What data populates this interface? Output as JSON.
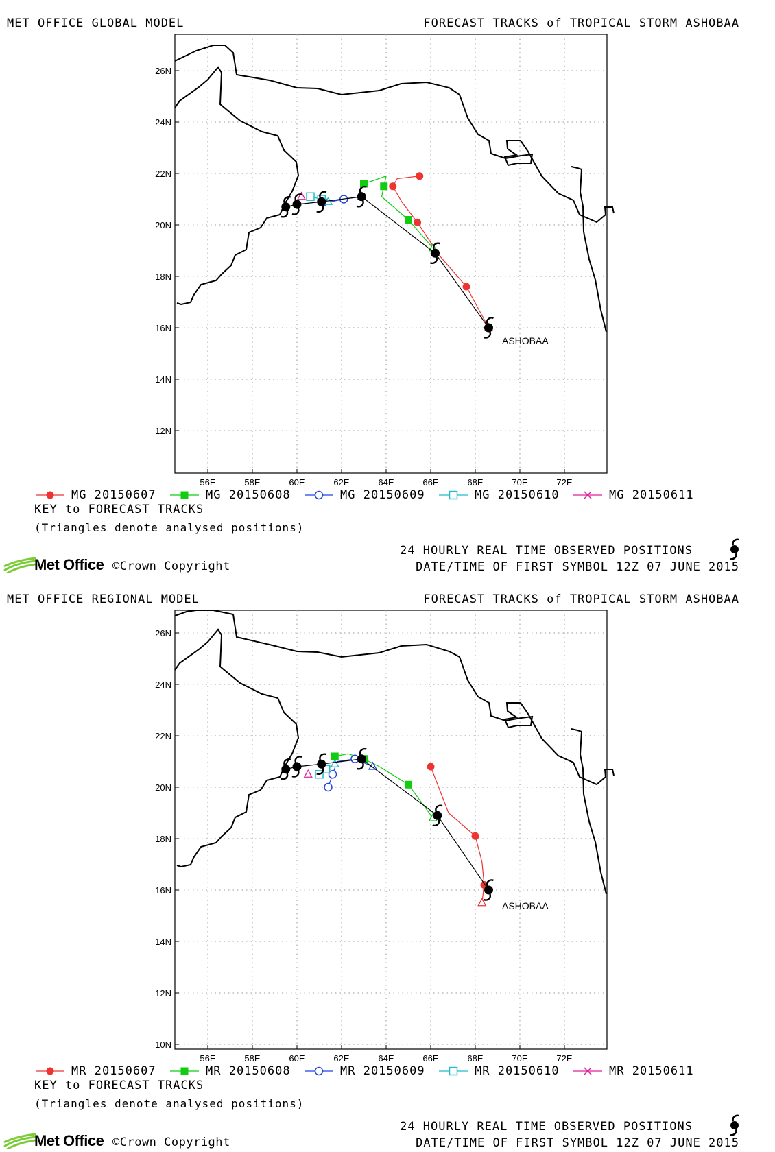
{
  "colors": {
    "mg0607": "#ee3333",
    "mg0608": "#11cc11",
    "mg0609": "#2244dd",
    "mg0610": "#22bbcc",
    "mg0611": "#dd2299",
    "observed": "#000000",
    "coast": "#000000",
    "grid": "#999999"
  },
  "panels": [
    {
      "id": "global",
      "header_left": "MET OFFICE GLOBAL MODEL",
      "header_right": "FORECAST TRACKS of TROPICAL STORM ASHOBAA",
      "map": {
        "lon_labels": [
          "56E",
          "58E",
          "60E",
          "62E",
          "64E",
          "66E",
          "68E",
          "70E",
          "72E"
        ],
        "lat_labels": [
          "12N",
          "14N",
          "16N",
          "18N",
          "20N",
          "22N",
          "24N",
          "26N"
        ],
        "storm_label": "ASHOBAA",
        "observed": [
          [
            68.6,
            16.0
          ],
          [
            66.2,
            18.9
          ],
          [
            62.9,
            21.1
          ],
          [
            61.1,
            20.9
          ],
          [
            60.0,
            20.8
          ],
          [
            59.5,
            20.7
          ]
        ],
        "tracks": [
          {
            "key": "mg0607",
            "marker": "circle-filled",
            "points": [
              [
                68.6,
                16.0
              ],
              [
                67.6,
                17.6
              ],
              [
                66.4,
                18.8
              ],
              [
                65.4,
                20.1
              ],
              [
                64.7,
                20.9
              ],
              [
                64.3,
                21.5
              ],
              [
                64.5,
                21.8
              ],
              [
                65.5,
                21.9
              ]
            ]
          },
          {
            "key": "mg0608",
            "marker": "square-filled",
            "points": [
              [
                66.1,
                19.1
              ],
              [
                65.0,
                20.2
              ],
              [
                63.8,
                21.1
              ],
              [
                63.9,
                21.5
              ],
              [
                64.0,
                21.9
              ],
              [
                63.0,
                21.6
              ]
            ]
          },
          {
            "key": "mg0609",
            "marker": "circle-open",
            "points": [
              [
                62.9,
                21.1
              ],
              [
                62.1,
                21.0
              ],
              [
                61.5,
                20.9
              ],
              [
                61.2,
                20.9
              ]
            ]
          },
          {
            "key": "mg0610",
            "marker": "square-open",
            "points": [
              [
                61.4,
                20.9
              ],
              [
                61.1,
                21.0
              ],
              [
                60.6,
                21.1
              ]
            ]
          },
          {
            "key": "mg0611",
            "marker": "triangle-open",
            "points": [
              [
                60.2,
                21.1
              ]
            ]
          }
        ]
      },
      "legend": [
        {
          "key": "mg0607",
          "marker": "circle-filled",
          "label": "MG 20150607"
        },
        {
          "key": "mg0608",
          "marker": "square-filled",
          "label": "MG 20150608"
        },
        {
          "key": "mg0609",
          "marker": "circle-open",
          "label": "MG 20150609"
        },
        {
          "key": "mg0610",
          "marker": "square-open",
          "label": "MG 20150610"
        },
        {
          "key": "mg0611",
          "marker": "cross",
          "label": "MG 20150611"
        }
      ],
      "key_title": "KEY to FORECAST TRACKS",
      "key_note": "(Triangles denote analysed positions)",
      "observed_label": "24 HOURLY REAL TIME OBSERVED POSITIONS",
      "date_label": "DATE/TIME OF FIRST SYMBOL 12Z 07 JUNE 2015",
      "logo_text": "Met Office",
      "copyright": "©Crown Copyright"
    },
    {
      "id": "regional",
      "header_left": "MET OFFICE REGIONAL MODEL",
      "header_right": "FORECAST TRACKS of TROPICAL STORM ASHOBAA",
      "map": {
        "lon_labels": [
          "56E",
          "58E",
          "60E",
          "62E",
          "64E",
          "66E",
          "68E",
          "70E",
          "72E"
        ],
        "lat_labels": [
          "10N",
          "12N",
          "14N",
          "16N",
          "18N",
          "20N",
          "22N",
          "24N",
          "26N"
        ],
        "storm_label": "ASHOBAA",
        "observed": [
          [
            68.6,
            16.0
          ],
          [
            66.3,
            18.9
          ],
          [
            62.9,
            21.1
          ],
          [
            61.1,
            20.9
          ],
          [
            60.0,
            20.8
          ],
          [
            59.5,
            20.7
          ]
        ],
        "tracks": [
          {
            "key": "mg0607",
            "marker": "circle-filled",
            "points": [
              [
                68.3,
                15.5
              ],
              [
                68.4,
                16.2
              ],
              [
                68.3,
                17.1
              ],
              [
                68.0,
                18.1
              ],
              [
                66.8,
                19.0
              ],
              [
                66.0,
                20.8
              ]
            ]
          },
          {
            "key": "mg0608",
            "marker": "square-filled",
            "points": [
              [
                66.1,
                18.8
              ],
              [
                65.0,
                20.1
              ],
              [
                63.7,
                20.8
              ],
              [
                63.0,
                21.1
              ],
              [
                62.3,
                21.3
              ],
              [
                61.7,
                21.2
              ]
            ]
          },
          {
            "key": "mg0609",
            "marker": "circle-open",
            "points": [
              [
                63.4,
                20.8
              ],
              [
                62.6,
                21.1
              ],
              [
                61.8,
                21.0
              ],
              [
                61.6,
                20.5
              ],
              [
                61.4,
                20.0
              ]
            ]
          },
          {
            "key": "mg0610",
            "marker": "square-open",
            "points": [
              [
                61.7,
                20.9
              ],
              [
                61.3,
                20.7
              ],
              [
                61.0,
                20.5
              ]
            ]
          },
          {
            "key": "mg0611",
            "marker": "triangle-open",
            "points": [
              [
                60.5,
                20.5
              ]
            ]
          }
        ]
      },
      "legend": [
        {
          "key": "mg0607",
          "marker": "circle-filled",
          "label": "MR 20150607"
        },
        {
          "key": "mg0608",
          "marker": "square-filled",
          "label": "MR 20150608"
        },
        {
          "key": "mg0609",
          "marker": "circle-open",
          "label": "MR 20150609"
        },
        {
          "key": "mg0610",
          "marker": "square-open",
          "label": "MR 20150610"
        },
        {
          "key": "mg0611",
          "marker": "cross",
          "label": "MR 20150611"
        }
      ],
      "key_title": "KEY to FORECAST TRACKS",
      "key_note": "(Triangles denote analysed positions)",
      "observed_label": "24 HOURLY REAL TIME OBSERVED POSITIONS",
      "date_label": "DATE/TIME OF FIRST SYMBOL 12Z 07 JUNE 2015",
      "logo_text": "Met Office",
      "copyright": "©Crown Copyright"
    }
  ]
}
